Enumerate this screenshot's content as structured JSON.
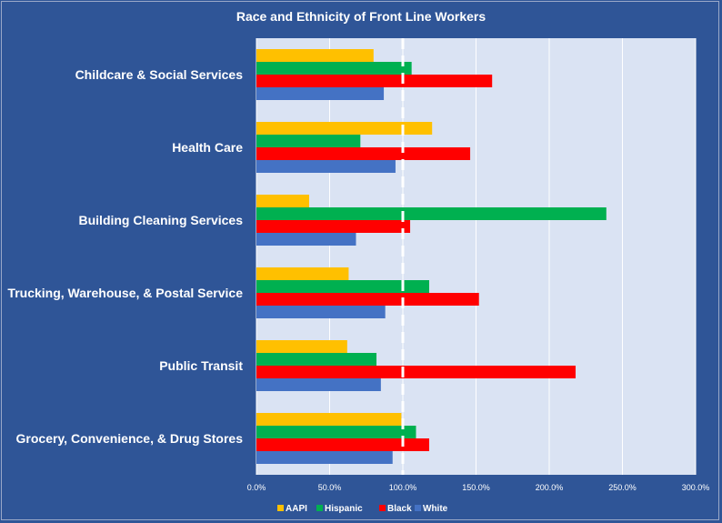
{
  "chart_data": {
    "type": "bar",
    "orientation": "horizontal",
    "title": "Race and Ethnicity of Front Line Workers",
    "categories": [
      "Childcare & Social Services",
      "Health Care",
      "Building Cleaning Services",
      "Trucking, Warehouse, & Postal Service",
      "Public Transit",
      "Grocery, Convenience, & Drug Stores"
    ],
    "series": [
      {
        "name": "AAPI",
        "color": "#ffc000",
        "values": [
          80,
          120,
          36,
          63,
          62,
          99
        ]
      },
      {
        "name": "Hispanic",
        "color": "#00b050",
        "values": [
          106,
          71,
          239,
          118,
          82,
          109
        ]
      },
      {
        "name": "Black",
        "color": "#ff0000",
        "values": [
          161,
          146,
          105,
          152,
          218,
          118
        ]
      },
      {
        "name": "White",
        "color": "#4472c4",
        "values": [
          87,
          95,
          68,
          88,
          85,
          93
        ]
      }
    ],
    "xlim": [
      0,
      300
    ],
    "x_ticks": [
      "0.0%",
      "50.0%",
      "100.0%",
      "150.0%",
      "200.0%",
      "250.0%",
      "300.0%"
    ],
    "reference_line": 100,
    "grid": true,
    "legend_position": "bottom",
    "colors": {
      "background": "#2f5597",
      "plot_area": "#dae3f3",
      "reference_line": "#ffffff"
    }
  }
}
